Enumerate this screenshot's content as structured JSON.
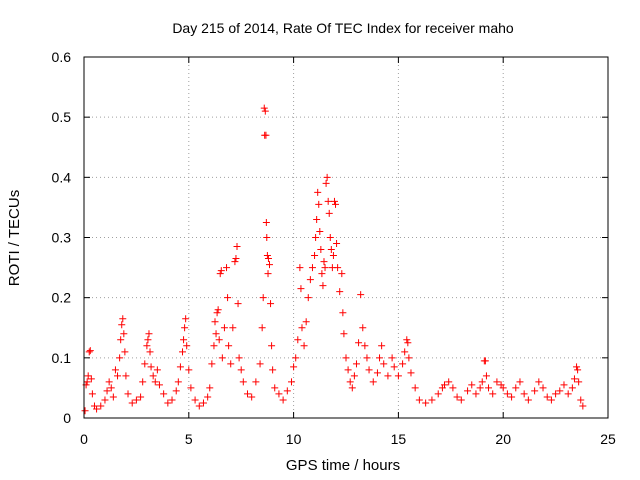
{
  "chart_data": {
    "type": "scatter",
    "title": "Day 215 of 2014, Rate Of TEC Index for receiver maho",
    "xlabel": "GPS time / hours",
    "ylabel": "ROTI / TECUs",
    "xlim": [
      0,
      25
    ],
    "ylim": [
      0,
      0.6
    ],
    "xticks": [
      0,
      5,
      10,
      15,
      20,
      25
    ],
    "xtick_labels": [
      "0",
      "5",
      "10",
      "15",
      "20",
      "25"
    ],
    "yticks": [
      0,
      0.1,
      0.2,
      0.3,
      0.4,
      0.5,
      0.6
    ],
    "ytick_labels": [
      "0",
      "0.1",
      "0.2",
      "0.3",
      "0.4",
      "0.5",
      "0.6"
    ],
    "grid": true,
    "marker": "+",
    "color": "#ff0000",
    "series": [
      {
        "name": "ROTI",
        "points": [
          [
            0.05,
            0.012
          ],
          [
            0.1,
            0.055
          ],
          [
            0.15,
            0.06
          ],
          [
            0.2,
            0.07
          ],
          [
            0.25,
            0.11
          ],
          [
            0.3,
            0.112
          ],
          [
            0.35,
            0.065
          ],
          [
            0.4,
            0.04
          ],
          [
            0.5,
            0.02
          ],
          [
            0.6,
            0.015
          ],
          [
            0.8,
            0.02
          ],
          [
            1.0,
            0.03
          ],
          [
            1.1,
            0.045
          ],
          [
            1.2,
            0.06
          ],
          [
            1.3,
            0.05
          ],
          [
            1.4,
            0.035
          ],
          [
            1.5,
            0.08
          ],
          [
            1.6,
            0.07
          ],
          [
            1.7,
            0.1
          ],
          [
            1.75,
            0.13
          ],
          [
            1.8,
            0.155
          ],
          [
            1.85,
            0.165
          ],
          [
            1.9,
            0.14
          ],
          [
            1.95,
            0.11
          ],
          [
            2.0,
            0.07
          ],
          [
            2.1,
            0.04
          ],
          [
            2.3,
            0.025
          ],
          [
            2.5,
            0.03
          ],
          [
            2.7,
            0.035
          ],
          [
            2.8,
            0.06
          ],
          [
            2.9,
            0.09
          ],
          [
            3.0,
            0.12
          ],
          [
            3.05,
            0.13
          ],
          [
            3.1,
            0.14
          ],
          [
            3.15,
            0.11
          ],
          [
            3.2,
            0.085
          ],
          [
            3.3,
            0.07
          ],
          [
            3.4,
            0.06
          ],
          [
            3.5,
            0.08
          ],
          [
            3.6,
            0.055
          ],
          [
            3.8,
            0.04
          ],
          [
            4.0,
            0.025
          ],
          [
            4.2,
            0.03
          ],
          [
            4.4,
            0.045
          ],
          [
            4.5,
            0.06
          ],
          [
            4.6,
            0.085
          ],
          [
            4.7,
            0.11
          ],
          [
            4.75,
            0.13
          ],
          [
            4.8,
            0.15
          ],
          [
            4.85,
            0.165
          ],
          [
            4.9,
            0.12
          ],
          [
            5.0,
            0.08
          ],
          [
            5.1,
            0.05
          ],
          [
            5.3,
            0.03
          ],
          [
            5.5,
            0.02
          ],
          [
            5.7,
            0.025
          ],
          [
            5.9,
            0.035
          ],
          [
            6.0,
            0.05
          ],
          [
            6.1,
            0.09
          ],
          [
            6.2,
            0.12
          ],
          [
            6.25,
            0.16
          ],
          [
            6.3,
            0.14
          ],
          [
            6.35,
            0.175
          ],
          [
            6.4,
            0.18
          ],
          [
            6.45,
            0.13
          ],
          [
            6.5,
            0.24
          ],
          [
            6.55,
            0.245
          ],
          [
            6.6,
            0.1
          ],
          [
            6.7,
            0.15
          ],
          [
            6.8,
            0.25
          ],
          [
            6.85,
            0.2
          ],
          [
            6.9,
            0.12
          ],
          [
            7.0,
            0.09
          ],
          [
            7.1,
            0.15
          ],
          [
            7.2,
            0.26
          ],
          [
            7.25,
            0.265
          ],
          [
            7.3,
            0.285
          ],
          [
            7.35,
            0.19
          ],
          [
            7.4,
            0.1
          ],
          [
            7.5,
            0.08
          ],
          [
            7.6,
            0.06
          ],
          [
            7.8,
            0.04
          ],
          [
            8.0,
            0.035
          ],
          [
            8.2,
            0.06
          ],
          [
            8.4,
            0.09
          ],
          [
            8.5,
            0.15
          ],
          [
            8.55,
            0.2
          ],
          [
            8.6,
            0.515
          ],
          [
            8.65,
            0.51
          ],
          [
            8.62,
            0.47
          ],
          [
            8.68,
            0.47
          ],
          [
            8.7,
            0.325
          ],
          [
            8.72,
            0.3
          ],
          [
            8.75,
            0.27
          ],
          [
            8.78,
            0.24
          ],
          [
            8.8,
            0.265
          ],
          [
            8.85,
            0.255
          ],
          [
            8.9,
            0.19
          ],
          [
            8.95,
            0.12
          ],
          [
            9.0,
            0.08
          ],
          [
            9.1,
            0.05
          ],
          [
            9.3,
            0.04
          ],
          [
            9.5,
            0.03
          ],
          [
            9.7,
            0.045
          ],
          [
            9.9,
            0.06
          ],
          [
            10.0,
            0.085
          ],
          [
            10.1,
            0.1
          ],
          [
            10.2,
            0.13
          ],
          [
            10.3,
            0.25
          ],
          [
            10.35,
            0.215
          ],
          [
            10.4,
            0.15
          ],
          [
            10.5,
            0.12
          ],
          [
            10.6,
            0.16
          ],
          [
            10.7,
            0.2
          ],
          [
            10.8,
            0.23
          ],
          [
            10.9,
            0.25
          ],
          [
            11.0,
            0.27
          ],
          [
            11.05,
            0.3
          ],
          [
            11.1,
            0.33
          ],
          [
            11.15,
            0.375
          ],
          [
            11.2,
            0.355
          ],
          [
            11.25,
            0.31
          ],
          [
            11.3,
            0.28
          ],
          [
            11.35,
            0.24
          ],
          [
            11.4,
            0.22
          ],
          [
            11.45,
            0.26
          ],
          [
            11.5,
            0.25
          ],
          [
            11.55,
            0.39
          ],
          [
            11.6,
            0.4
          ],
          [
            11.65,
            0.36
          ],
          [
            11.7,
            0.34
          ],
          [
            11.75,
            0.3
          ],
          [
            11.8,
            0.28
          ],
          [
            11.85,
            0.25
          ],
          [
            11.9,
            0.27
          ],
          [
            11.95,
            0.36
          ],
          [
            12.0,
            0.355
          ],
          [
            12.05,
            0.29
          ],
          [
            12.1,
            0.25
          ],
          [
            12.2,
            0.21
          ],
          [
            12.3,
            0.24
          ],
          [
            12.35,
            0.175
          ],
          [
            12.4,
            0.14
          ],
          [
            12.5,
            0.1
          ],
          [
            12.6,
            0.08
          ],
          [
            12.7,
            0.06
          ],
          [
            12.8,
            0.05
          ],
          [
            12.9,
            0.07
          ],
          [
            13.0,
            0.09
          ],
          [
            13.1,
            0.125
          ],
          [
            13.2,
            0.205
          ],
          [
            13.3,
            0.15
          ],
          [
            13.4,
            0.12
          ],
          [
            13.5,
            0.1
          ],
          [
            13.6,
            0.08
          ],
          [
            13.8,
            0.06
          ],
          [
            14.0,
            0.075
          ],
          [
            14.1,
            0.1
          ],
          [
            14.2,
            0.12
          ],
          [
            14.3,
            0.09
          ],
          [
            14.5,
            0.07
          ],
          [
            14.7,
            0.1
          ],
          [
            14.8,
            0.085
          ],
          [
            15.0,
            0.07
          ],
          [
            15.2,
            0.09
          ],
          [
            15.3,
            0.11
          ],
          [
            15.4,
            0.13
          ],
          [
            15.45,
            0.125
          ],
          [
            15.5,
            0.1
          ],
          [
            15.6,
            0.075
          ],
          [
            15.8,
            0.05
          ],
          [
            16.0,
            0.03
          ],
          [
            16.3,
            0.025
          ],
          [
            16.6,
            0.03
          ],
          [
            16.9,
            0.04
          ],
          [
            17.1,
            0.05
          ],
          [
            17.2,
            0.055
          ],
          [
            17.4,
            0.06
          ],
          [
            17.6,
            0.05
          ],
          [
            17.8,
            0.035
          ],
          [
            18.0,
            0.03
          ],
          [
            18.3,
            0.045
          ],
          [
            18.5,
            0.055
          ],
          [
            18.7,
            0.04
          ],
          [
            18.9,
            0.05
          ],
          [
            19.0,
            0.06
          ],
          [
            19.1,
            0.095
          ],
          [
            19.15,
            0.095
          ],
          [
            19.2,
            0.07
          ],
          [
            19.3,
            0.05
          ],
          [
            19.5,
            0.04
          ],
          [
            19.7,
            0.06
          ],
          [
            19.9,
            0.055
          ],
          [
            20.0,
            0.05
          ],
          [
            20.2,
            0.04
          ],
          [
            20.4,
            0.035
          ],
          [
            20.6,
            0.05
          ],
          [
            20.8,
            0.06
          ],
          [
            21.0,
            0.04
          ],
          [
            21.2,
            0.03
          ],
          [
            21.5,
            0.045
          ],
          [
            21.7,
            0.06
          ],
          [
            21.9,
            0.05
          ],
          [
            22.1,
            0.035
          ],
          [
            22.3,
            0.03
          ],
          [
            22.5,
            0.04
          ],
          [
            22.7,
            0.045
          ],
          [
            22.9,
            0.055
          ],
          [
            23.1,
            0.04
          ],
          [
            23.3,
            0.05
          ],
          [
            23.4,
            0.065
          ],
          [
            23.5,
            0.085
          ],
          [
            23.55,
            0.08
          ],
          [
            23.6,
            0.06
          ],
          [
            23.7,
            0.03
          ],
          [
            23.8,
            0.02
          ]
        ]
      }
    ]
  }
}
